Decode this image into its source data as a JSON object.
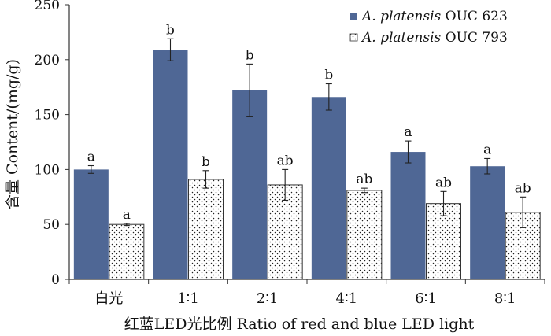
{
  "chart_data": {
    "type": "bar",
    "xlabel": "红蓝LED光比例 Ratio of  red and blue LED light",
    "ylabel": "含量 Content/(mg/g)",
    "ylim": [
      0,
      250
    ],
    "yticks": [
      0,
      50,
      100,
      150,
      200,
      250
    ],
    "categories": [
      "白光",
      "1∶1",
      "2∶1",
      "4∶1",
      "6∶1",
      "8∶1"
    ],
    "grid": false,
    "legend_position": "top-right",
    "series": [
      {
        "name_italic": "A. platensis",
        "name_rest": "OUC 623",
        "color": "#4f6795",
        "pattern": "solid",
        "values": [
          100,
          209,
          172,
          166,
          116,
          103
        ],
        "errors": [
          3.5,
          10,
          24,
          12,
          10,
          7
        ],
        "labels": [
          "a",
          "b",
          "b",
          "b",
          "a",
          "a"
        ]
      },
      {
        "name_italic": "A. platensis",
        "name_rest": "OUC 793",
        "color": "#ffffff",
        "pattern": "dotted",
        "values": [
          50,
          91,
          86,
          81,
          69,
          61
        ],
        "errors": [
          1,
          8,
          14,
          2,
          11,
          14
        ],
        "labels": [
          "a",
          "b",
          "ab",
          "ab",
          "ab",
          "ab"
        ]
      }
    ]
  }
}
